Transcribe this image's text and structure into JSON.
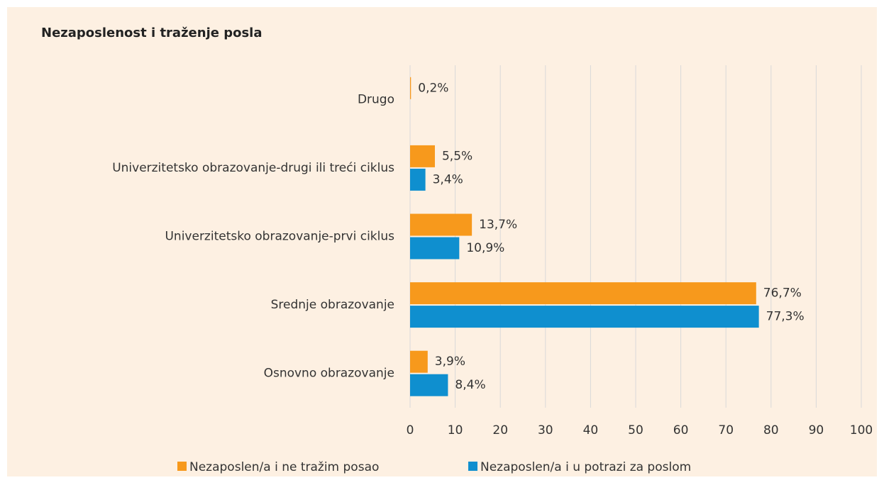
{
  "chart_data": {
    "type": "hbar",
    "title": "Nezaposlenost i traženje posla",
    "categories": [
      "Drugo",
      "Univerzitetsko obrazovanje-drugi ili treći ciklus",
      "Univerzitetsko obrazovanje-prvi ciklus",
      "Srednje obrazovanje",
      "Osnovno obrazovanje"
    ],
    "series": [
      {
        "name": "Nezaposlen/a i ne tražim posao",
        "color": "#f7991c",
        "values": [
          0.2,
          5.5,
          13.7,
          76.7,
          3.9
        ],
        "value_labels": [
          "0,2%",
          "5,5%",
          "13,7%",
          "76,7%",
          "3,9%"
        ]
      },
      {
        "name": "Nezaposlen/a i u potrazi za poslom",
        "color": "#0f8fcf",
        "values": [
          null,
          3.4,
          10.9,
          77.3,
          8.4
        ],
        "value_labels": [
          null,
          "3,4%",
          "10,9%",
          "77,3%",
          "8,4%"
        ]
      }
    ],
    "xlim": [
      0,
      100
    ],
    "xticks": [
      0,
      10,
      20,
      30,
      40,
      50,
      60,
      70,
      80,
      90,
      100
    ],
    "grid": true,
    "legend": "bottom"
  }
}
